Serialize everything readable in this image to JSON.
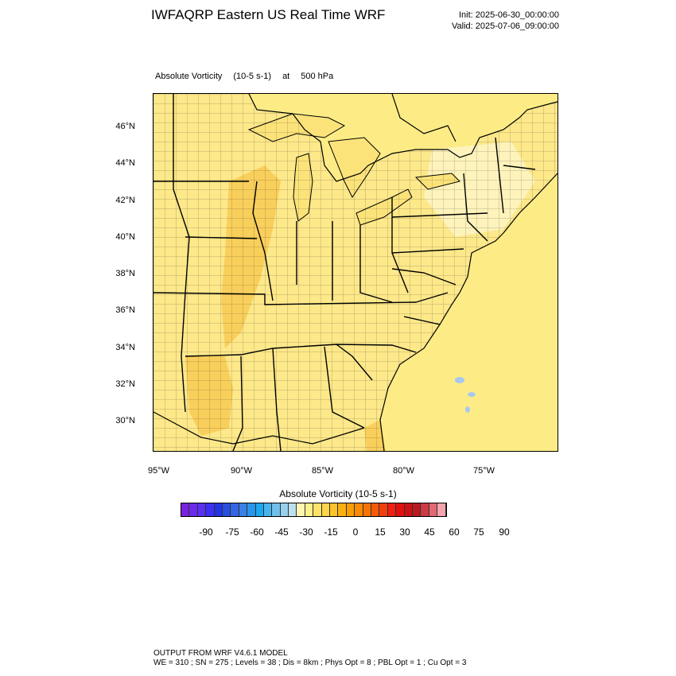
{
  "header": {
    "title": "IWFAQRP Eastern US Real Time WRF",
    "init": "Init: 2025-06-30_00:00:00",
    "valid": "Valid: 2025-07-06_09:00:00"
  },
  "field": {
    "name": "Absolute Vorticity",
    "units": "(10-5 s-1)",
    "at": "at",
    "level": "500 hPa"
  },
  "map": {
    "lat_labels": [
      "46°N",
      "44°N",
      "42°N",
      "40°N",
      "38°N",
      "36°N",
      "34°N",
      "32°N",
      "30°N"
    ],
    "lon_labels": [
      "95°W",
      "90°W",
      "85°W",
      "80°W",
      "75°W"
    ],
    "colors": {
      "land_base": "#fde88a",
      "land_light": "#fdf3bb",
      "land_warm": "#f9cf5c",
      "water": "#fbe37a",
      "ocean": "#fdec86",
      "negative": "#a9c8ef",
      "boundary": "#000000"
    }
  },
  "colorbar": {
    "title": "Absolute Vorticity  (10-5 s-1)",
    "tick_labels": [
      "-90",
      "-75",
      "-60",
      "-45",
      "-30",
      "-15",
      "0",
      "15",
      "30",
      "45",
      "60",
      "75",
      "90"
    ],
    "colors": [
      "#7b22e0",
      "#6a2aec",
      "#5a30f2",
      "#3b30f4",
      "#2234e4",
      "#2a4ee0",
      "#3466e4",
      "#3a80e8",
      "#2596ec",
      "#1ca8f0",
      "#48b4ee",
      "#70c0ec",
      "#98d0ee",
      "#bedff0",
      "#fff7b0",
      "#fef08c",
      "#fde36a",
      "#fdd54a",
      "#fcc32a",
      "#fbb012",
      "#fa9e06",
      "#f88a04",
      "#f67404",
      "#f45a08",
      "#f2400c",
      "#f02010",
      "#e01010",
      "#cc1014",
      "#b81a20",
      "#cc3a44",
      "#e26872",
      "#f4a4aa"
    ]
  },
  "footer": {
    "line1": "OUTPUT FROM WRF V4.6.1 MODEL",
    "line2": "WE = 310 ; SN = 275 ; Levels = 38 ; Dis = 8km ; Phys Opt = 8 ; PBL Opt = 1 ; Cu Opt = 3"
  }
}
